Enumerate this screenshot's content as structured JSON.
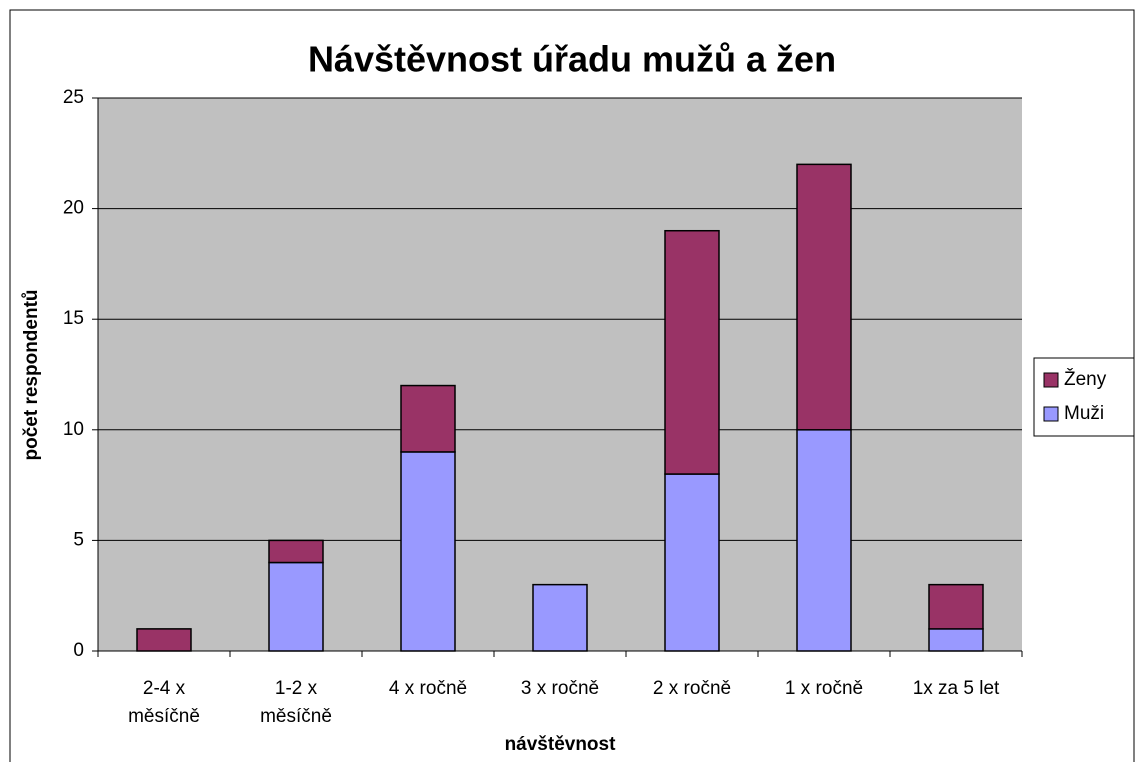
{
  "chart_data": {
    "type": "bar",
    "stacked": true,
    "title": "Návštěvnost úřadu mužů a žen",
    "x_label": "návštěvnost",
    "y_label": "počet respondentů",
    "categories": [
      "2-4 x\nměsíčně",
      "1-2 x\nměsíčně",
      "4 x ročně",
      "3 x ročně",
      "2 x ročně",
      "1 x ročně",
      "1x za 5 let"
    ],
    "series": [
      {
        "name": "Muži",
        "color": "#9999ff",
        "values": [
          0,
          4,
          9,
          3,
          8,
          10,
          1
        ]
      },
      {
        "name": "Ženy",
        "color": "#993366",
        "values": [
          1,
          1,
          3,
          0,
          11,
          12,
          2
        ]
      }
    ],
    "ylim": [
      0,
      25
    ],
    "yticks": [
      0,
      5,
      10,
      15,
      20,
      25
    ],
    "grid": true,
    "legend": "right",
    "plot_background": "#c0c0c0"
  }
}
